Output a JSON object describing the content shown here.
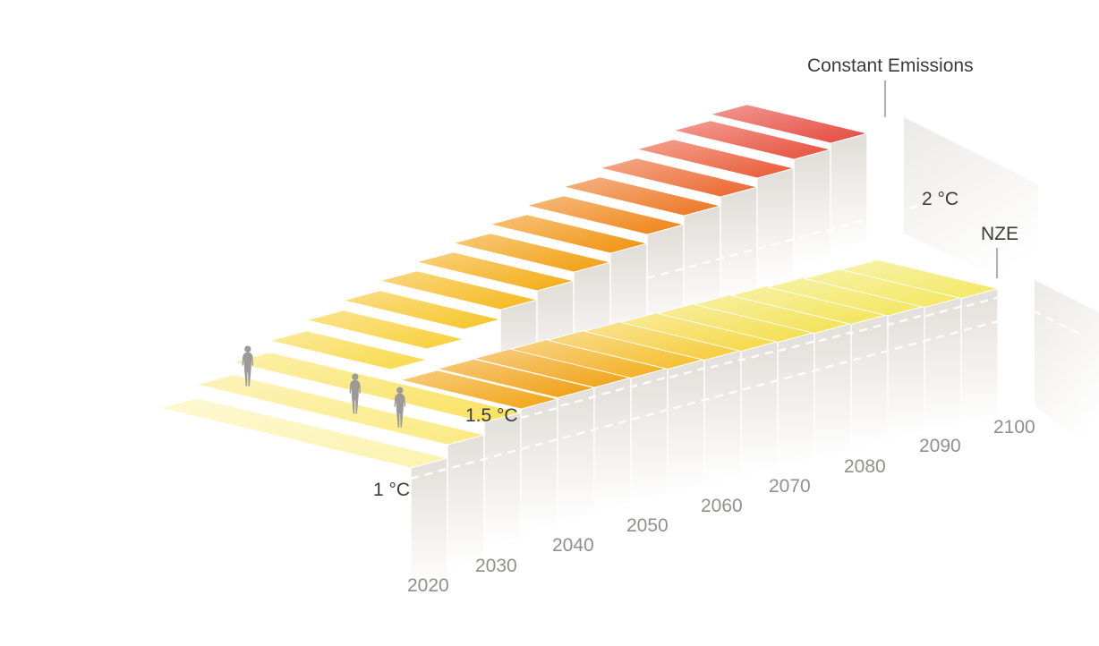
{
  "annotations": {
    "constant_emissions": "Constant Emissions",
    "nze": "NZE"
  },
  "temp_labels": {
    "t1": "1 °C",
    "t15": "1.5 °C",
    "t2": "2 °C"
  },
  "years": [
    "2020",
    "2030",
    "2040",
    "2050",
    "2060",
    "2070",
    "2080",
    "2090",
    "2100"
  ],
  "decoration": {
    "figures": {
      "count": 3,
      "name": "human-silhouette",
      "color": "#9b9a99"
    }
  },
  "colors": {
    "background": "#ffffff",
    "label_dark": "#3b3b3a",
    "label_year": "#908f8c",
    "pointer_line": "#8e8d8b",
    "dash_line": "#ffffff",
    "wall_top": "#e2ded9",
    "inner_wall_top": "#e0dcd7",
    "cap_top": "#eceae7"
  },
  "chart_data": {
    "type": "line",
    "title": "",
    "unit": "°C",
    "x": [
      2020,
      2030,
      2040,
      2050,
      2060,
      2070,
      2080,
      2090,
      2100
    ],
    "gridlines": [
      "1 °C",
      "1.5 °C",
      "2 °C"
    ],
    "legend": [
      "Constant Emissions",
      "NZE"
    ],
    "series": [
      {
        "name": "Constant Emissions",
        "approx_temps_c": [
          1.0,
          1.2,
          1.4,
          1.55,
          1.7,
          1.85,
          2.0,
          2.15,
          2.3
        ]
      },
      {
        "name": "NZE",
        "approx_temps_c": [
          1.0,
          1.2,
          1.45,
          1.5,
          1.48,
          1.46,
          1.45,
          1.43,
          1.42
        ]
      }
    ],
    "step_interval_years": 5,
    "shared_steps": 3,
    "scenarios": [
      {
        "name": "Constant Emissions",
        "steps_z": [
          0,
          15,
          29,
          42,
          54,
          65,
          76,
          86,
          96,
          106,
          116,
          126,
          136,
          146,
          156,
          163,
          170
        ],
        "colors": [
          "#FCF3AE",
          "#FBEA82",
          "#F9E260",
          "#F8D948",
          "#F7CF35",
          "#F6C426",
          "#F5B81B",
          "#F4AB12",
          "#F29E0D",
          "#F1910C",
          "#EF8313",
          "#ED741F",
          "#EB652B",
          "#E95834",
          "#E74E3A",
          "#E5483D",
          "#E3443E"
        ]
      },
      {
        "name": "NZE",
        "steps_z": [
          0,
          15,
          29,
          33,
          34.5,
          35,
          34.5,
          33.5,
          32.5,
          31.5,
          30.5,
          29.5,
          28.5,
          27,
          25.5,
          24.5,
          23
        ],
        "colors": [
          "#FCF3AE",
          "#FBEA82",
          "#F9E260",
          "#F2A413",
          "#EF9F0F",
          "#F0A315",
          "#F2AF1F",
          "#F4BE2C",
          "#F5CC38",
          "#F5D844",
          "#F3DE4D",
          "#F2E254",
          "#F2E458",
          "#F2E65C",
          "#F3E75F",
          "#F3E862",
          "#F3E965"
        ]
      }
    ]
  }
}
